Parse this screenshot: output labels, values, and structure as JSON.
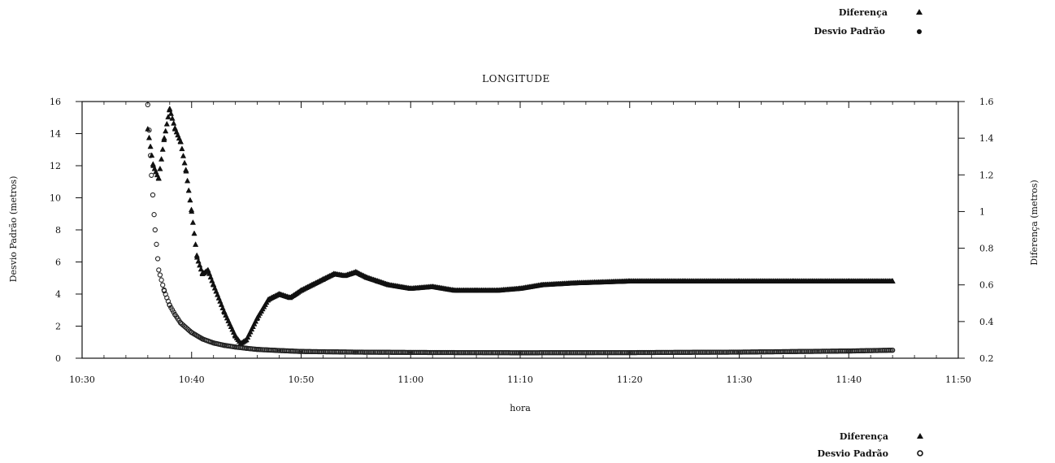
{
  "chart_data": {
    "type": "scatter",
    "title": "LONGITUDE",
    "xlabel": "hora",
    "ylabel_left": "Desvio Padrão (metros)",
    "ylabel_right": "Diferença (metros)",
    "x_unit": "minutes",
    "xlim": [
      "10:30",
      "11:50"
    ],
    "xticks": [
      "10:30",
      "10:40",
      "10:50",
      "11:00",
      "11:10",
      "11:20",
      "11:30",
      "11:40",
      "11:50"
    ],
    "ylim_left": [
      0,
      16
    ],
    "yticks_left": [
      "0",
      "2",
      "4",
      "6",
      "8",
      "10",
      "12",
      "14",
      "16"
    ],
    "ylim_right": [
      0.2,
      1.6
    ],
    "yticks_right": [
      "0.2",
      "0.4",
      "0.6",
      "0.8",
      "1",
      "1.2",
      "1.4",
      "1.6"
    ],
    "grid": false,
    "legend_top": [
      {
        "label": "Diferença",
        "marker": "filled-triangle"
      },
      {
        "label": "Desvio Padrão",
        "marker": "filled-circle"
      }
    ],
    "legend_bottom": [
      {
        "label": "Diferença",
        "marker": "filled-triangle"
      },
      {
        "label": "Desvio Padrão",
        "marker": "open-circle"
      }
    ],
    "series": [
      {
        "name": "Diferença",
        "axis": "right",
        "marker": "triangle",
        "x": [
          "10:36",
          "10:36:30",
          "10:37",
          "10:37:30",
          "10:38",
          "10:38:30",
          "10:39",
          "10:39:30",
          "10:40",
          "10:40:30",
          "10:41",
          "10:41:30",
          "10:42",
          "10:43",
          "10:44",
          "10:44:30",
          "10:45",
          "10:46",
          "10:47",
          "10:48",
          "10:49",
          "10:50",
          "10:51",
          "10:52",
          "10:53",
          "10:54",
          "10:55",
          "10:56",
          "10:57",
          "10:58",
          "11:00",
          "11:02",
          "11:04",
          "11:06",
          "11:08",
          "11:10",
          "11:12",
          "11:15",
          "11:20",
          "11:25",
          "11:30",
          "11:35",
          "11:40",
          "11:44"
        ],
        "y": [
          1.45,
          1.25,
          1.18,
          1.4,
          1.56,
          1.45,
          1.38,
          1.22,
          1.0,
          0.75,
          0.66,
          0.68,
          0.6,
          0.45,
          0.32,
          0.28,
          0.3,
          0.42,
          0.52,
          0.55,
          0.53,
          0.57,
          0.6,
          0.63,
          0.66,
          0.65,
          0.67,
          0.64,
          0.62,
          0.6,
          0.58,
          0.59,
          0.57,
          0.57,
          0.57,
          0.58,
          0.6,
          0.61,
          0.62,
          0.62,
          0.62,
          0.62,
          0.62,
          0.62
        ]
      },
      {
        "name": "Desvio Padrão",
        "axis": "left",
        "marker": "circle",
        "x": [
          "10:36",
          "10:36:20",
          "10:36:40",
          "10:37",
          "10:37:30",
          "10:38",
          "10:38:30",
          "10:39",
          "10:40",
          "10:41",
          "10:42",
          "10:43",
          "10:44",
          "10:45",
          "10:46",
          "10:48",
          "10:50",
          "10:55",
          "11:00",
          "11:10",
          "11:20",
          "11:30",
          "11:40",
          "11:44"
        ],
        "y": [
          15.8,
          11.4,
          8.0,
          5.5,
          4.2,
          3.3,
          2.7,
          2.2,
          1.6,
          1.2,
          0.95,
          0.8,
          0.7,
          0.62,
          0.55,
          0.48,
          0.42,
          0.38,
          0.36,
          0.34,
          0.35,
          0.38,
          0.45,
          0.5
        ]
      }
    ]
  }
}
